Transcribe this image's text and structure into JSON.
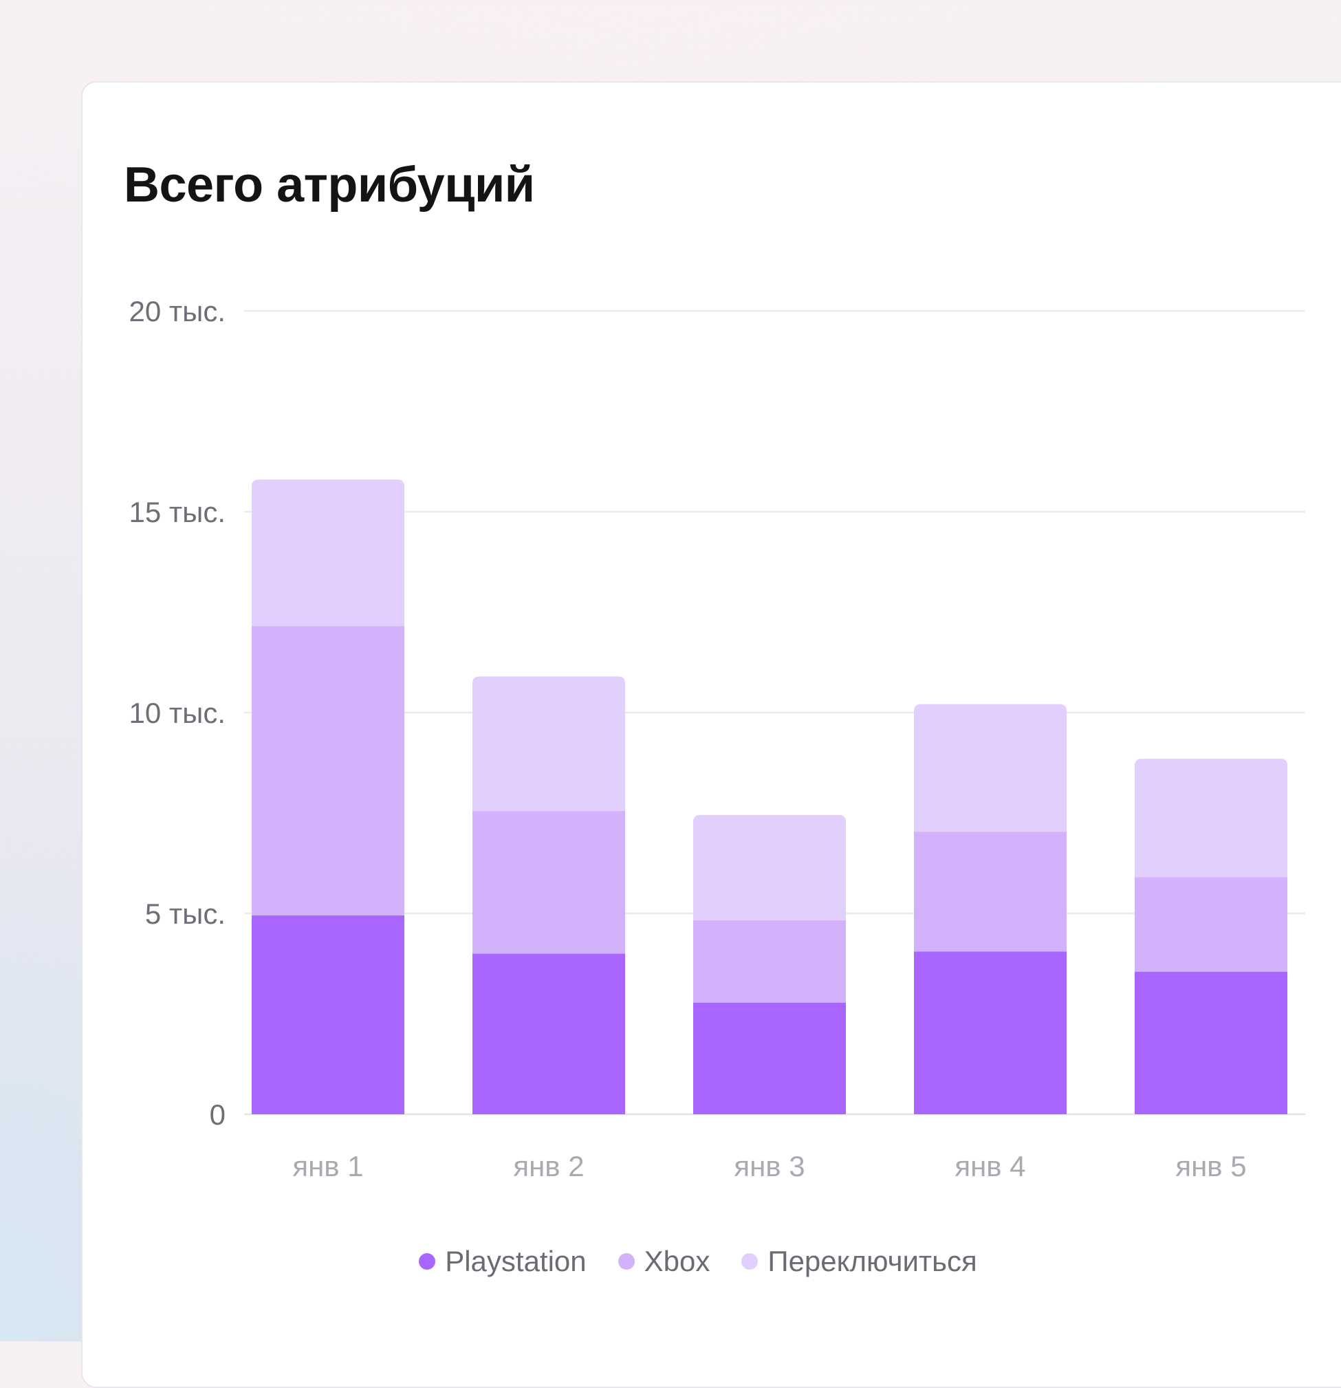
{
  "card": {
    "title": "Всего атрибуций"
  },
  "chart_data": {
    "type": "bar",
    "stacked": true,
    "title": "Всего атрибуций",
    "categories": [
      "янв 1",
      "янв 2",
      "янв 3",
      "янв 4",
      "янв 5"
    ],
    "series": [
      {
        "name": "Playstation",
        "values": [
          4950,
          4000,
          2780,
          4050,
          3550
        ],
        "color": "#a966ff"
      },
      {
        "name": "Xbox",
        "values": [
          7200,
          3550,
          2050,
          2980,
          2350
        ],
        "color": "#d2b2fb"
      },
      {
        "name": "Переключиться",
        "values": [
          3650,
          3350,
          2620,
          3180,
          2950
        ],
        "color": "#e2cffd"
      }
    ],
    "ylim": [
      0,
      20000
    ],
    "yticks": [
      0,
      5000,
      10000,
      15000,
      20000
    ],
    "ytick_labels": [
      "0",
      "5 тыс.",
      "10 тыс.",
      "15 тыс.",
      "20 тыс."
    ],
    "grid": true,
    "legend_position": "bottom-center",
    "xlabel": "",
    "ylabel": ""
  }
}
